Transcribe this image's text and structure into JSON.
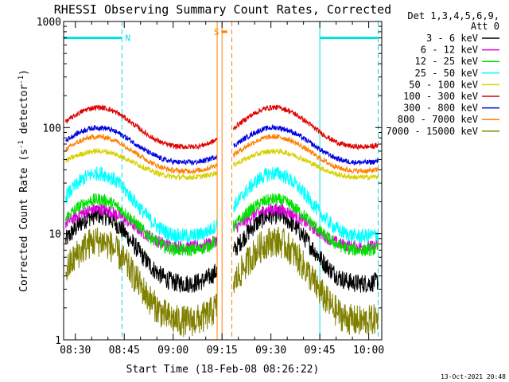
{
  "chart_data": {
    "type": "line",
    "title": "RHESSI Observing Summary Count Rates, Corrected",
    "xlabel": "Start Time (18-Feb-08 08:26:22)",
    "ylabel_main": "Corrected Count Rate (s",
    "ylabel_sup1": "-1",
    "ylabel_mid": " detector",
    "ylabel_sup2": "-1",
    "ylabel_end": ")",
    "yscale": "log",
    "ylim": [
      1,
      1000
    ],
    "yticks": [
      {
        "value": 1,
        "label": "1"
      },
      {
        "value": 10,
        "label": "10"
      },
      {
        "value": 100,
        "label": "100"
      },
      {
        "value": 1000,
        "label": "1000"
      }
    ],
    "xlim_minutes": [
      506.4,
      604.0
    ],
    "xticks": [
      {
        "value": 510,
        "label": "08:30"
      },
      {
        "value": 525,
        "label": "08:45"
      },
      {
        "value": 540,
        "label": "09:00"
      },
      {
        "value": 555,
        "label": "09:15"
      },
      {
        "value": 570,
        "label": "09:30"
      },
      {
        "value": 585,
        "label": "09:45"
      },
      {
        "value": 600,
        "label": "10:00"
      }
    ],
    "legend": {
      "header1": "Det 1,3,4,5,6,9,",
      "header2": "Att 0",
      "placement": "right"
    },
    "data_gap_minutes": [
      553.5,
      558.5
    ],
    "series": [
      {
        "name": "3 - 6 keV",
        "color": "#000000",
        "min": 3.4,
        "max": 15,
        "noise": 0.18
      },
      {
        "name": "6 - 12 keV",
        "color": "#e000e0",
        "min": 7.5,
        "max": 17,
        "noise": 0.12
      },
      {
        "name": "12 - 25 keV",
        "color": "#00e000",
        "min": 7.0,
        "max": 21,
        "noise": 0.12
      },
      {
        "name": "25 - 50 keV",
        "color": "#00ffff",
        "min": 9.5,
        "max": 37,
        "noise": 0.14
      },
      {
        "name": "50 - 100 keV",
        "color": "#d8d000",
        "min": 34,
        "max": 60,
        "noise": 0.05
      },
      {
        "name": "100 - 300 keV",
        "color": "#e00000",
        "min": 66,
        "max": 155,
        "noise": 0.05
      },
      {
        "name": "300 - 800 keV",
        "color": "#0000e0",
        "min": 47,
        "max": 100,
        "noise": 0.05
      },
      {
        "name": "800 - 7000 keV",
        "color": "#ff8000",
        "min": 39,
        "max": 82,
        "noise": 0.05
      },
      {
        "name": "7000 - 15000 keV",
        "color": "#808000",
        "min": 1.5,
        "max": 8.5,
        "noise": 0.3
      }
    ],
    "flags": [
      {
        "label": "N",
        "color": "#00e0e0",
        "start": 506.4,
        "end": 524.3,
        "value": 700
      },
      {
        "label": "",
        "color": "#00e0e0",
        "start": 585.0,
        "end": 602.9,
        "value": 700
      },
      {
        "label": "S",
        "color": "#ff8000",
        "start": 554.8,
        "end": 556.6,
        "value": 800
      }
    ],
    "vlines": [
      {
        "at": 506.4,
        "color": "#00e0e0",
        "style": "solid"
      },
      {
        "at": 524.3,
        "color": "#00e0e0",
        "style": "dashed"
      },
      {
        "at": 585.0,
        "color": "#00e0e0",
        "style": "solid"
      },
      {
        "at": 602.9,
        "color": "#00e0e0",
        "style": "dashed"
      },
      {
        "at": 553.5,
        "color": "#ff8000",
        "style": "solid"
      },
      {
        "at": 555.0,
        "color": "#ff8000",
        "style": "solid"
      },
      {
        "at": 558.0,
        "color": "#ff8000",
        "style": "dashed"
      }
    ],
    "footer": "13-Oct-2021 20:48"
  }
}
